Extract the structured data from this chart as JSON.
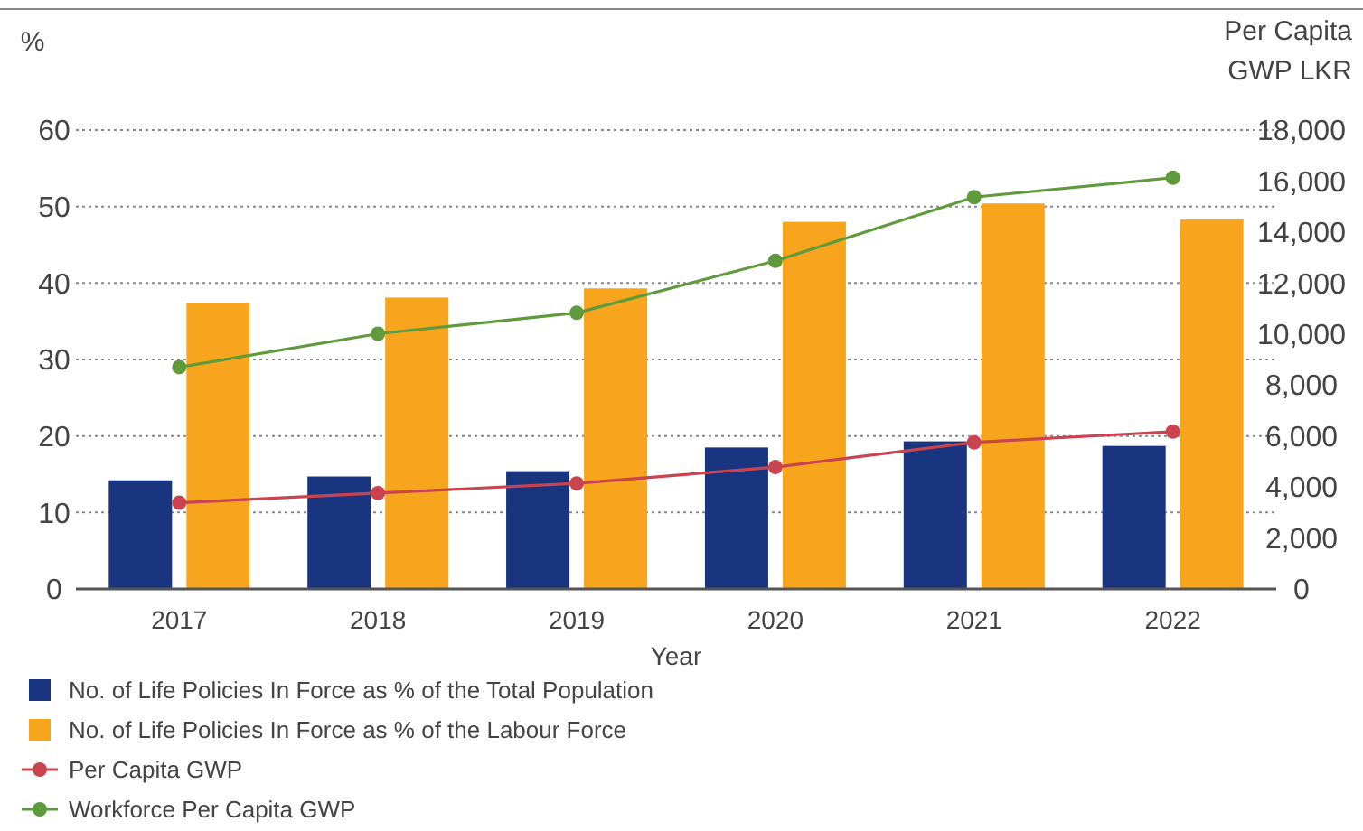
{
  "chart_data": {
    "type": "bar",
    "ylabel": "%",
    "y2label": "Per Capita\nGWP LKR",
    "xlabel": "Year",
    "categories": [
      "2017",
      "2018",
      "2019",
      "2020",
      "2021",
      "2022"
    ],
    "series": [
      {
        "name": "No. of Life Policies In Force as % of the Total Population",
        "color": "#193580",
        "values": [
          14.2,
          14.7,
          15.4,
          18.5,
          19.3,
          18.7
        ]
      },
      {
        "name": "No. of Life Policies In Force as % of the Labour Force",
        "color": "#f7a51c",
        "values": [
          37.4,
          38.1,
          39.3,
          48.0,
          50.4,
          48.3
        ]
      },
      {
        "name": "Per Capita GWP",
        "type": "line",
        "axis": "y2",
        "color": "#c9444f",
        "values": [
          3380,
          3760,
          4140,
          4780,
          5750,
          6170
        ]
      },
      {
        "name": "Workforce Per Capita GWP",
        "type": "line",
        "axis": "y2",
        "color": "#5f9a3c",
        "values": [
          8700,
          10010,
          10830,
          12870,
          15370,
          16130
        ]
      }
    ],
    "ylim": [
      0,
      60
    ],
    "yticks": [
      0,
      10,
      20,
      30,
      40,
      50,
      60
    ],
    "y2lim": [
      0,
      18000
    ],
    "y2ticks": [
      0,
      {
        "value": 2000,
        "label": "2,000"
      },
      {
        "value": 4000,
        "label": "4,000"
      },
      {
        "value": 6000,
        "label": "6,000"
      },
      {
        "value": 8000,
        "label": "8,000"
      },
      {
        "value": 10000,
        "label": "10,000"
      },
      {
        "value": 12000,
        "label": "12,000"
      },
      {
        "value": 14000,
        "label": "14,000"
      },
      {
        "value": 16000,
        "label": "16,000"
      },
      {
        "value": 18000,
        "label": "18,000"
      }
    ],
    "grid": "y",
    "legend": "bottom",
    "marker": "circle",
    "line_style": "solid"
  }
}
